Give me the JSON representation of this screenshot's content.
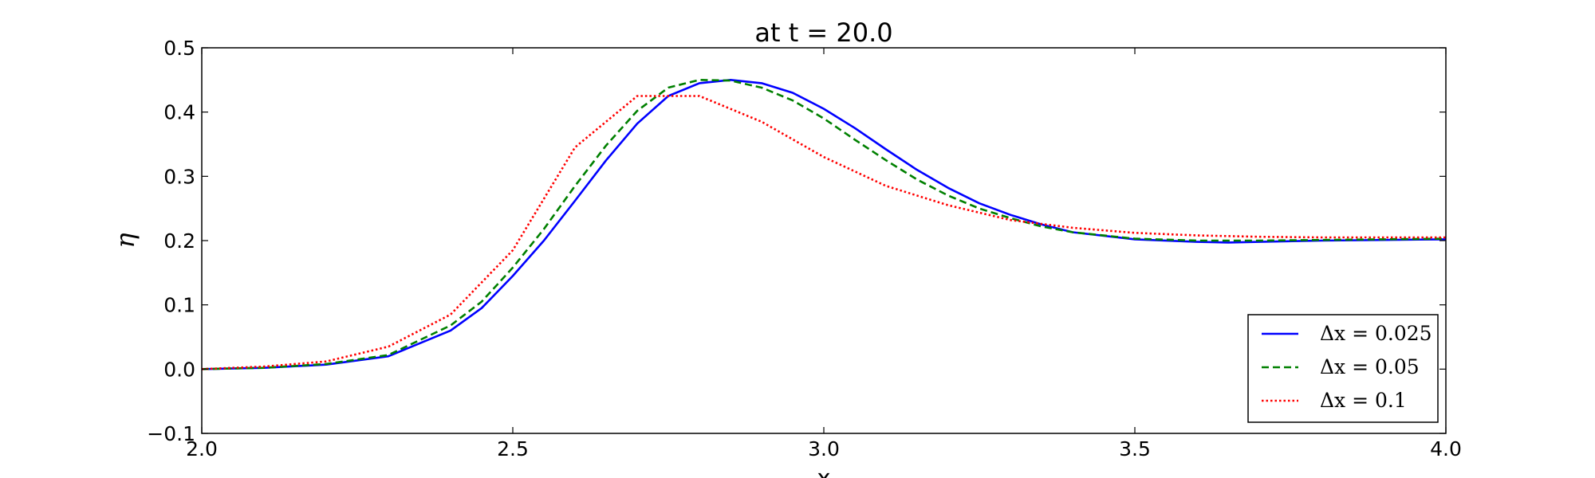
{
  "chart_data": {
    "type": "line",
    "title": "at t = 20.0",
    "xlabel": "x",
    "ylabel": "η",
    "xlim": [
      2.0,
      4.0
    ],
    "ylim": [
      -0.1,
      0.5
    ],
    "xticks": [
      "2.0",
      "2.5",
      "3.0",
      "3.5",
      "4.0"
    ],
    "yticks": [
      "−0.1",
      "0.0",
      "0.1",
      "0.2",
      "0.3",
      "0.4",
      "0.5"
    ],
    "grid": false,
    "legend_position": "lower-right",
    "series": [
      {
        "name": "Δx = 0.025",
        "color": "#0000ff",
        "style": "solid",
        "x": [
          2.0,
          2.1,
          2.2,
          2.3,
          2.4,
          2.45,
          2.5,
          2.55,
          2.6,
          2.65,
          2.7,
          2.75,
          2.8,
          2.85,
          2.9,
          2.95,
          3.0,
          3.05,
          3.1,
          3.15,
          3.2,
          3.25,
          3.3,
          3.35,
          3.4,
          3.5,
          3.6,
          3.65,
          3.7,
          3.8,
          3.9,
          4.0
        ],
        "y": [
          0.0,
          0.002,
          0.007,
          0.02,
          0.06,
          0.095,
          0.145,
          0.2,
          0.262,
          0.325,
          0.382,
          0.425,
          0.445,
          0.45,
          0.445,
          0.43,
          0.405,
          0.375,
          0.342,
          0.31,
          0.282,
          0.258,
          0.24,
          0.225,
          0.213,
          0.202,
          0.198,
          0.197,
          0.198,
          0.2,
          0.201,
          0.202
        ]
      },
      {
        "name": "Δx = 0.05",
        "color": "#008000",
        "style": "dashed",
        "x": [
          2.0,
          2.1,
          2.2,
          2.3,
          2.4,
          2.45,
          2.5,
          2.55,
          2.6,
          2.65,
          2.7,
          2.75,
          2.8,
          2.85,
          2.9,
          2.95,
          3.0,
          3.05,
          3.1,
          3.15,
          3.2,
          3.25,
          3.3,
          3.35,
          3.4,
          3.5,
          3.6,
          3.7,
          3.8,
          3.9,
          4.0
        ],
        "y": [
          0.0,
          0.002,
          0.008,
          0.022,
          0.068,
          0.105,
          0.158,
          0.218,
          0.285,
          0.348,
          0.402,
          0.438,
          0.45,
          0.449,
          0.438,
          0.418,
          0.39,
          0.357,
          0.325,
          0.295,
          0.27,
          0.25,
          0.235,
          0.222,
          0.213,
          0.203,
          0.2,
          0.2,
          0.201,
          0.202,
          0.203
        ]
      },
      {
        "name": "Δx = 0.1",
        "color": "#ff0000",
        "style": "dotted",
        "x": [
          2.0,
          2.1,
          2.2,
          2.3,
          2.4,
          2.5,
          2.6,
          2.7,
          2.8,
          2.9,
          3.0,
          3.1,
          3.2,
          3.3,
          3.4,
          3.5,
          3.6,
          3.7,
          3.8,
          3.9,
          4.0
        ],
        "y": [
          0.0,
          0.004,
          0.012,
          0.035,
          0.085,
          0.185,
          0.345,
          0.425,
          0.425,
          0.385,
          0.33,
          0.285,
          0.255,
          0.232,
          0.22,
          0.212,
          0.208,
          0.206,
          0.205,
          0.205,
          0.205
        ]
      }
    ]
  }
}
